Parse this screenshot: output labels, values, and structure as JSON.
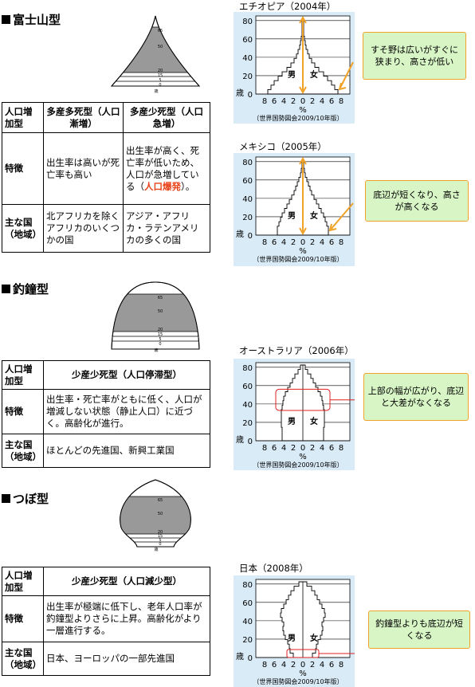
{
  "sections": [
    {
      "title": "富士山型",
      "table": {
        "row_label_type": "人口増加型",
        "col1_header": "多産多死型（人口漸増）",
        "col2_header": "多産少死型（人口急増）",
        "feature_label": "特徴",
        "col1_feature": "出生率は高いが死亡率も高い",
        "col2_feature_pre": "出生率が高く、死亡率が低いため、人口が急増している（",
        "col2_feature_red": "人口爆発",
        "col2_feature_post": "）。",
        "country_label": "主な国（地域）",
        "col1_country": "北アフリカを除くアフリカのいくつかの国",
        "col2_country": "アジア・アフリカ・ラテンアメリカの多くの国"
      }
    },
    {
      "title": "釣鐘型",
      "table": {
        "row_label_type": "人口増加型",
        "header": "少産少死型（人口停滞型）",
        "feature_label": "特徴",
        "feature": "出生率・死亡率がともに低く、人口が増減しない状態（静止人口）に近づく。高齢化が進行。",
        "country_label": "主な国（地域）",
        "country": "ほとんどの先進国、新興工業国"
      }
    },
    {
      "title": "つぼ型",
      "table": {
        "row_label_type": "人口増加型",
        "header": "少産少死型（人口減少型）",
        "feature_label": "特徴",
        "feature": "出生率が極端に低下し、老年人口率が釣鐘型よりさらに上昇。高齢化がより一層進行する。",
        "country_label": "主な国（地域）",
        "country": "日本、ヨーロッパの一部先進国"
      }
    }
  ],
  "shape_ages": [
    "65",
    "50",
    "20",
    "15",
    "5",
    "0",
    "歳"
  ],
  "charts": [
    {
      "title": "エチオピア（2004年）",
      "callout": "すそ野は広いがすぐに狭まり、高さが低い"
    },
    {
      "title": "メキシコ（2005年）",
      "callout": "底辺が短くなり、高さが高くなる"
    },
    {
      "title": "オーストラリア（2006年）",
      "callout": "上部の幅が広がり、底辺と大差がなくなる"
    },
    {
      "title": "日本（2008年）",
      "callout": "釣鐘型よりも底辺が短くなる"
    }
  ],
  "chart_common": {
    "y_ticks": [
      "80",
      "60",
      "40",
      "20",
      "0"
    ],
    "y_unit": "歳",
    "x_ticks": [
      "8",
      "6",
      "4",
      "2",
      "0",
      "2",
      "4",
      "6",
      "8"
    ],
    "x_unit": "%",
    "male": "男",
    "female": "女",
    "source": "（世界国勢図会2009/10年版）"
  },
  "colors": {
    "orange": "#f0a328",
    "callout_bg": "#d8f5c6",
    "chart_bg": "#d9ebf7",
    "shape_fill": "#999999",
    "red": "#e8431a"
  }
}
